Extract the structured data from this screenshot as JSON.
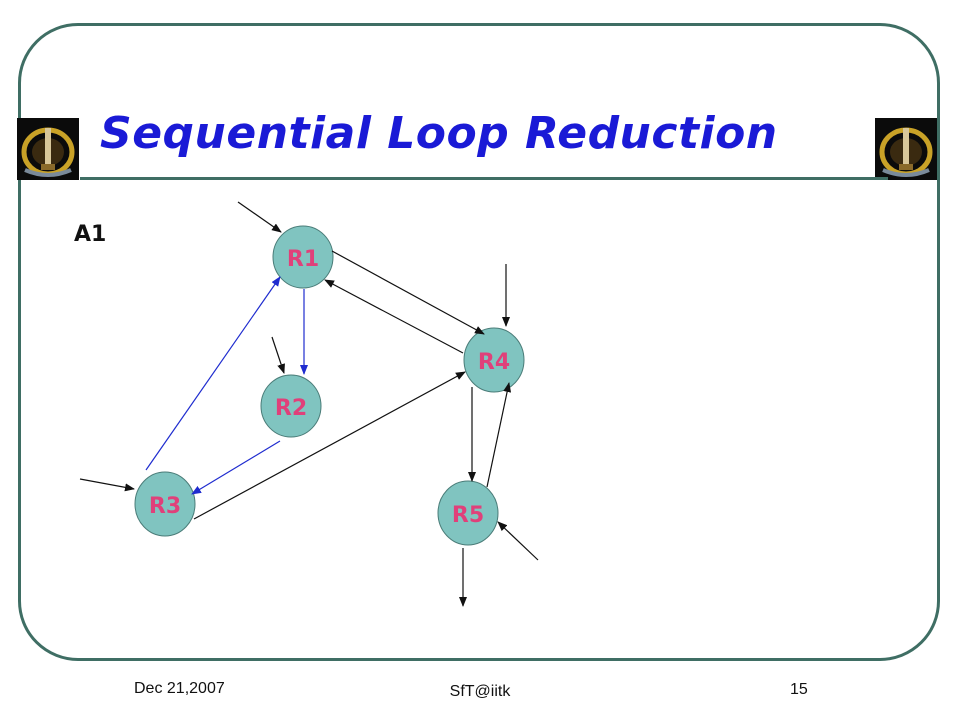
{
  "slide": {
    "title": "Sequential Loop Reduction",
    "label": "A1",
    "colors": {
      "title": "#1a1ad6",
      "frame": "#3f6e64",
      "node_fill": "#80c4c0",
      "node_label": "#e0407a",
      "edge_black": "#111111",
      "edge_blue": "#1f2ccf"
    }
  },
  "nodes": [
    {
      "id": "R1",
      "label": "R1"
    },
    {
      "id": "R2",
      "label": "R2"
    },
    {
      "id": "R3",
      "label": "R3"
    },
    {
      "id": "R4",
      "label": "R4"
    },
    {
      "id": "R5",
      "label": "R5"
    }
  ],
  "edges": [
    {
      "from": "R1",
      "to": "R2",
      "color": "blue"
    },
    {
      "from": "R2",
      "to": "R3",
      "color": "blue"
    },
    {
      "from": "R3",
      "to": "R1",
      "color": "blue"
    },
    {
      "from": "R1",
      "to": "R4",
      "color": "black"
    },
    {
      "from": "R4",
      "to": "R1",
      "color": "black"
    },
    {
      "from": "R3",
      "to": "R4",
      "color": "black"
    },
    {
      "from": "R4",
      "to": "R5",
      "color": "black"
    },
    {
      "from": "R5",
      "to": "R4",
      "color": "black"
    },
    {
      "from": "external",
      "to": "R1",
      "color": "black"
    },
    {
      "from": "external",
      "to": "R2",
      "color": "black"
    },
    {
      "from": "external",
      "to": "R3",
      "color": "black"
    },
    {
      "from": "external",
      "to": "R4",
      "color": "black"
    },
    {
      "from": "external",
      "to": "R5",
      "color": "black"
    },
    {
      "from": "R5",
      "to": "external",
      "color": "black"
    }
  ],
  "footer": {
    "date": "Dec 21,2007",
    "center": "SfT@iitk",
    "page": "15"
  },
  "icons": [
    "institute-logo-left",
    "institute-logo-right"
  ]
}
